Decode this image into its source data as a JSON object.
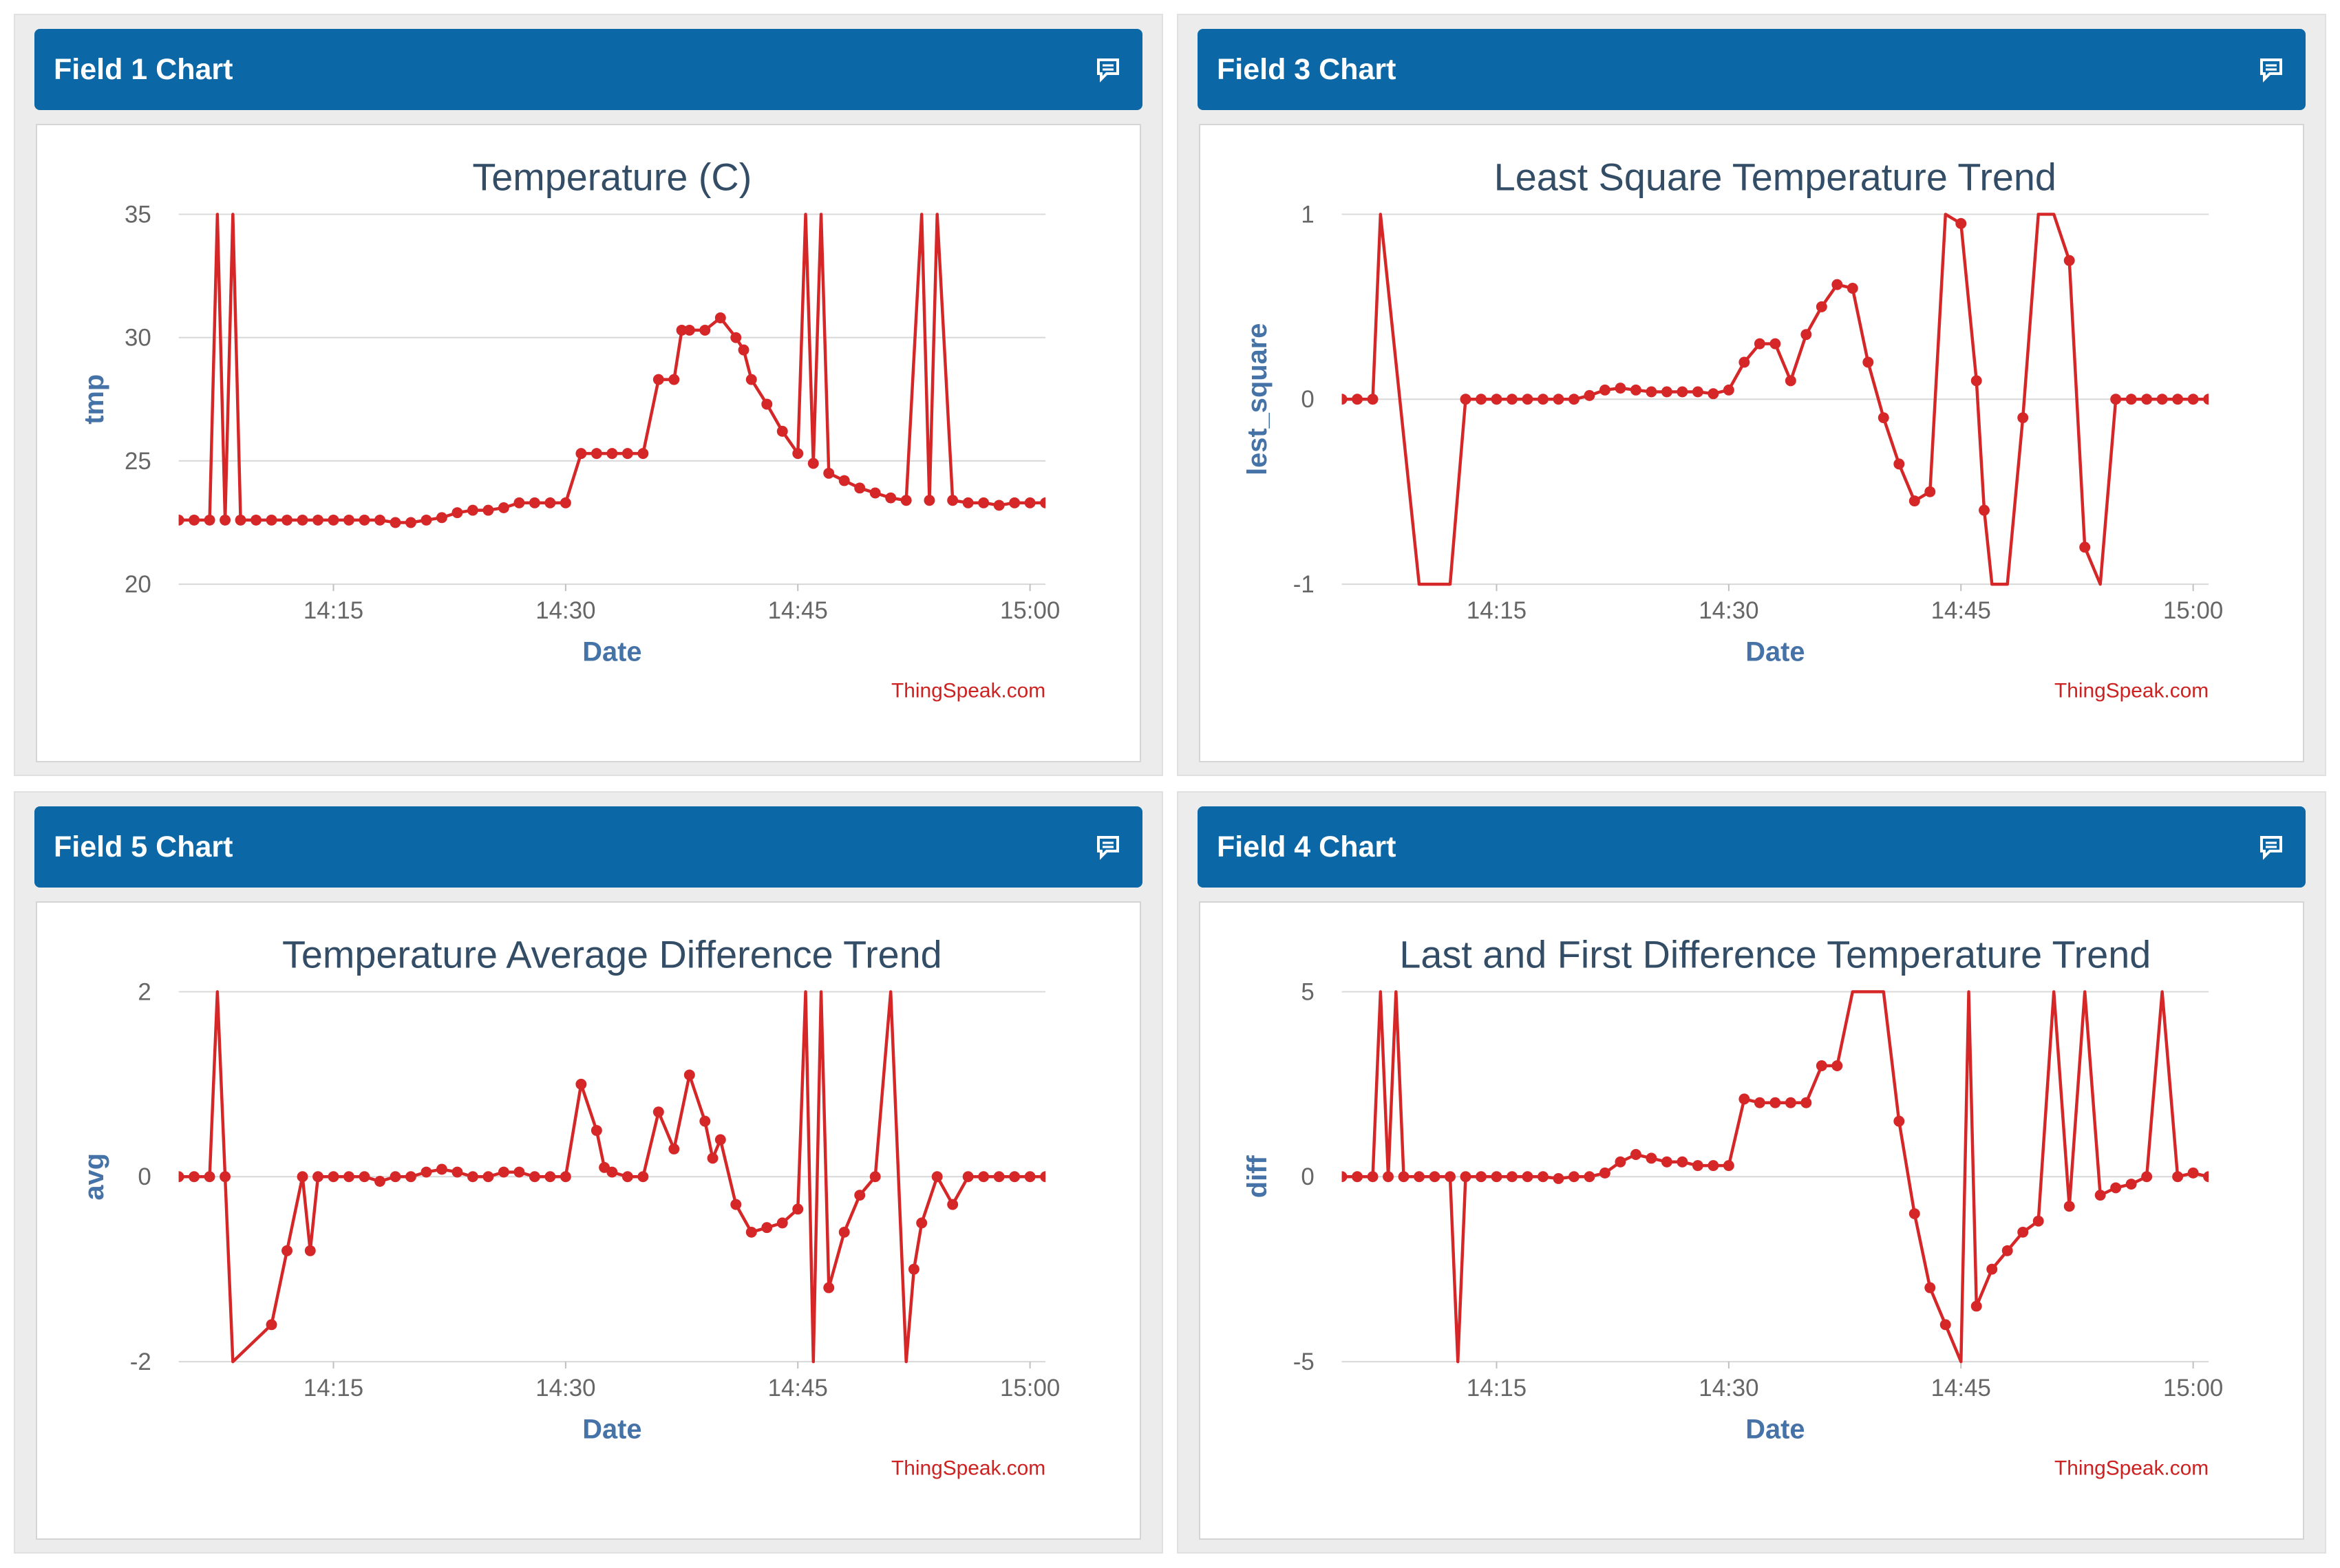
{
  "colors": {
    "header": "#0b67a6",
    "series": "#d62728",
    "grid": "#d8d8d8",
    "axis_title": "#4572a7",
    "chart_title": "#334d66",
    "credit": "#cc2222"
  },
  "panels": [
    {
      "header": "Field 1 Chart",
      "icon": "comment-icon"
    },
    {
      "header": "Field 3 Chart",
      "icon": "comment-icon"
    },
    {
      "header": "Field 5 Chart",
      "icon": "comment-icon"
    },
    {
      "header": "Field 4 Chart",
      "icon": "comment-icon"
    }
  ],
  "chart_data": [
    {
      "type": "line",
      "title": "Temperature (C)",
      "xlabel": "Date",
      "ylabel": "tmp",
      "credit": "ThingSpeak.com",
      "ylim": [
        20,
        35
      ],
      "yticks": [
        20,
        25,
        30,
        35
      ],
      "xlim": [
        "14:05",
        "15:01"
      ],
      "xticks": [
        "14:15",
        "14:30",
        "14:45",
        "15:00"
      ],
      "grid": true,
      "series": [
        {
          "x": [
            "14:05",
            "14:06",
            "14:07",
            "14:07:30",
            "14:08",
            "14:08:30",
            "14:09",
            "14:10",
            "14:11",
            "14:12",
            "14:13",
            "14:14",
            "14:15",
            "14:16",
            "14:17",
            "14:18",
            "14:19",
            "14:20",
            "14:21",
            "14:22",
            "14:23",
            "14:24",
            "14:25",
            "14:26",
            "14:27",
            "14:28",
            "14:29",
            "14:30",
            "14:31",
            "14:32",
            "14:33",
            "14:34",
            "14:35",
            "14:36",
            "14:37",
            "14:37:30",
            "14:38",
            "14:39",
            "14:40",
            "14:41",
            "14:41:30",
            "14:42",
            "14:43",
            "14:44",
            "14:45",
            "14:45:30",
            "14:46",
            "14:46:30",
            "14:47",
            "14:48",
            "14:49",
            "14:50",
            "14:51",
            "14:52",
            "14:53",
            "14:53:30",
            "14:54",
            "14:55",
            "14:56",
            "14:57",
            "14:58",
            "14:59",
            "15:00",
            "15:01"
          ],
          "y": [
            22.6,
            22.6,
            22.6,
            35,
            22.6,
            35,
            22.6,
            22.6,
            22.6,
            22.6,
            22.6,
            22.6,
            22.6,
            22.6,
            22.6,
            22.6,
            22.5,
            22.5,
            22.6,
            22.7,
            22.9,
            23.0,
            23.0,
            23.1,
            23.3,
            23.3,
            23.3,
            23.3,
            25.3,
            25.3,
            25.3,
            25.3,
            25.3,
            28.3,
            28.3,
            30.3,
            30.3,
            30.3,
            30.8,
            30.0,
            29.5,
            28.3,
            27.3,
            26.2,
            25.3,
            35,
            24.9,
            35,
            24.5,
            24.2,
            23.9,
            23.7,
            23.5,
            23.4,
            35,
            23.4,
            35,
            23.4,
            23.3,
            23.3,
            23.2,
            23.3,
            23.3,
            23.3
          ]
        }
      ]
    },
    {
      "type": "line",
      "title": "Least Square Temperature Trend",
      "xlabel": "Date",
      "ylabel": "lest_square",
      "credit": "ThingSpeak.com",
      "ylim": [
        -1,
        1
      ],
      "yticks": [
        -1,
        0,
        1
      ],
      "xlim": [
        "14:05",
        "15:01"
      ],
      "xticks": [
        "14:15",
        "14:30",
        "14:45",
        "15:00"
      ],
      "grid": true,
      "series": [
        {
          "x": [
            "14:05",
            "14:06",
            "14:07",
            "14:07:30",
            "14:10",
            "14:12",
            "14:13",
            "14:14",
            "14:15",
            "14:16",
            "14:17",
            "14:18",
            "14:19",
            "14:20",
            "14:21",
            "14:22",
            "14:23",
            "14:24",
            "14:25",
            "14:26",
            "14:27",
            "14:28",
            "14:29",
            "14:30",
            "14:31",
            "14:32",
            "14:33",
            "14:34",
            "14:35",
            "14:36",
            "14:37",
            "14:38",
            "14:39",
            "14:40",
            "14:41",
            "14:42",
            "14:43",
            "14:44",
            "14:45",
            "14:46",
            "14:46:30",
            "14:47",
            "14:48",
            "14:49",
            "14:50",
            "14:51",
            "14:52",
            "14:53",
            "14:54",
            "14:55",
            "14:56",
            "14:57",
            "14:58",
            "14:59",
            "15:00",
            "15:01"
          ],
          "y": [
            0,
            0,
            0,
            1,
            -1,
            -1,
            0,
            0,
            0,
            0,
            0,
            0,
            0,
            0,
            0.02,
            0.05,
            0.06,
            0.05,
            0.04,
            0.04,
            0.04,
            0.04,
            0.03,
            0.05,
            0.2,
            0.3,
            0.3,
            0.1,
            0.35,
            0.5,
            0.62,
            0.6,
            0.2,
            -0.1,
            -0.35,
            -0.55,
            -0.5,
            1,
            0.95,
            0.1,
            -0.6,
            -1,
            -1,
            -0.1,
            1,
            1,
            0.75,
            -0.8,
            -1,
            0,
            0,
            0,
            0,
            0,
            0,
            0
          ]
        }
      ]
    },
    {
      "type": "line",
      "title": "Temperature Average Difference Trend",
      "xlabel": "Date",
      "ylabel": "avg",
      "credit": "ThingSpeak.com",
      "ylim": [
        -2,
        2
      ],
      "yticks": [
        -2,
        0,
        2
      ],
      "xlim": [
        "14:05",
        "15:01"
      ],
      "xticks": [
        "14:15",
        "14:30",
        "14:45",
        "15:00"
      ],
      "grid": true,
      "series": [
        {
          "x": [
            "14:05",
            "14:06",
            "14:07",
            "14:07:30",
            "14:08",
            "14:08:30",
            "14:11",
            "14:12",
            "14:13",
            "14:13:30",
            "14:14",
            "14:15",
            "14:16",
            "14:17",
            "14:18",
            "14:19",
            "14:20",
            "14:21",
            "14:22",
            "14:23",
            "14:24",
            "14:25",
            "14:26",
            "14:27",
            "14:28",
            "14:29",
            "14:30",
            "14:31",
            "14:32",
            "14:32:30",
            "14:33",
            "14:34",
            "14:35",
            "14:36",
            "14:37",
            "14:38",
            "14:39",
            "14:39:30",
            "14:40",
            "14:41",
            "14:42",
            "14:43",
            "14:44",
            "14:45",
            "14:45:30",
            "14:46",
            "14:46:30",
            "14:47",
            "14:48",
            "14:49",
            "14:50",
            "14:51",
            "14:52",
            "14:52:30",
            "14:53",
            "14:54",
            "14:55",
            "14:56",
            "14:57",
            "14:58",
            "14:59",
            "15:00",
            "15:01"
          ],
          "y": [
            0,
            0,
            0,
            2,
            0,
            -2,
            -1.6,
            -0.8,
            0,
            -0.8,
            0,
            0,
            0,
            0,
            -0.05,
            0,
            0,
            0.05,
            0.08,
            0.05,
            0,
            0,
            0.05,
            0.05,
            0,
            0,
            0,
            1.0,
            0.5,
            0.1,
            0.05,
            0,
            0,
            0.7,
            0.3,
            1.1,
            0.6,
            0.2,
            0.4,
            -0.3,
            -0.6,
            -0.55,
            -0.5,
            -0.35,
            2,
            -2,
            2,
            -1.2,
            -0.6,
            -0.2,
            0,
            2,
            -2,
            -1.0,
            -0.5,
            0,
            -0.3,
            0,
            0,
            0,
            0,
            0,
            0
          ]
        }
      ]
    },
    {
      "type": "line",
      "title": "Last and First Difference Temperature Trend",
      "xlabel": "Date",
      "ylabel": "diff",
      "credit": "ThingSpeak.com",
      "ylim": [
        -5,
        5
      ],
      "yticks": [
        -5,
        0,
        5
      ],
      "xlim": [
        "14:05",
        "15:01"
      ],
      "xticks": [
        "14:15",
        "14:30",
        "14:45",
        "15:00"
      ],
      "grid": true,
      "series": [
        {
          "x": [
            "14:05",
            "14:06",
            "14:07",
            "14:07:30",
            "14:08",
            "14:08:30",
            "14:09",
            "14:10",
            "14:11",
            "14:12",
            "14:12:30",
            "14:13",
            "14:14",
            "14:15",
            "14:16",
            "14:17",
            "14:18",
            "14:19",
            "14:20",
            "14:21",
            "14:22",
            "14:23",
            "14:24",
            "14:25",
            "14:26",
            "14:27",
            "14:28",
            "14:29",
            "14:30",
            "14:31",
            "14:32",
            "14:33",
            "14:34",
            "14:35",
            "14:36",
            "14:37",
            "14:38",
            "14:39",
            "14:40",
            "14:41",
            "14:42",
            "14:43",
            "14:44",
            "14:45",
            "14:45:30",
            "14:46",
            "14:47",
            "14:48",
            "14:49",
            "14:50",
            "14:51",
            "14:52",
            "14:53",
            "14:54",
            "14:55",
            "14:56",
            "14:57",
            "14:58",
            "14:59",
            "15:00",
            "15:01"
          ],
          "y": [
            0,
            0,
            0,
            5,
            0,
            5,
            0,
            0,
            0,
            0,
            -5,
            0,
            0,
            0,
            0,
            0,
            0,
            -0.05,
            0,
            0,
            0.1,
            0.4,
            0.6,
            0.5,
            0.4,
            0.4,
            0.3,
            0.3,
            0.3,
            2.1,
            2.0,
            2.0,
            2.0,
            2.0,
            3.0,
            3.0,
            5,
            5,
            5,
            1.5,
            -1.0,
            -3.0,
            -4.0,
            -5,
            5,
            -3.5,
            -2.5,
            -2.0,
            -1.5,
            -1.2,
            5,
            -0.8,
            5,
            -0.5,
            -0.3,
            -0.2,
            0,
            5,
            0,
            0.1,
            0
          ]
        }
      ]
    }
  ]
}
